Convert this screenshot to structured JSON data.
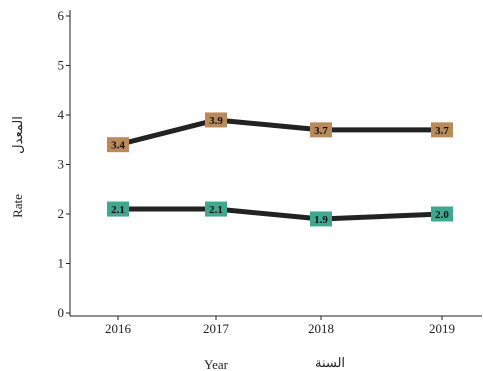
{
  "chart_data": {
    "type": "line",
    "x": [
      "2016",
      "2017",
      "2018",
      "2019"
    ],
    "series": [
      {
        "values": [
          3.4,
          3.9,
          3.7,
          3.7
        ],
        "label_color": "#b98a5a"
      },
      {
        "values": [
          2.1,
          2.1,
          1.9,
          2.0
        ],
        "label_color": "#3fa88f"
      }
    ],
    "line_color": "#222222",
    "title": "",
    "xlabel": "Year",
    "xlabel_ar": "السنة",
    "ylabel": "Rate",
    "ylabel_ar": "المعدل",
    "ylim": [
      0,
      6
    ],
    "yticks": [
      0,
      1,
      2,
      3,
      4,
      5,
      6
    ],
    "grid": false,
    "legend": "none"
  }
}
